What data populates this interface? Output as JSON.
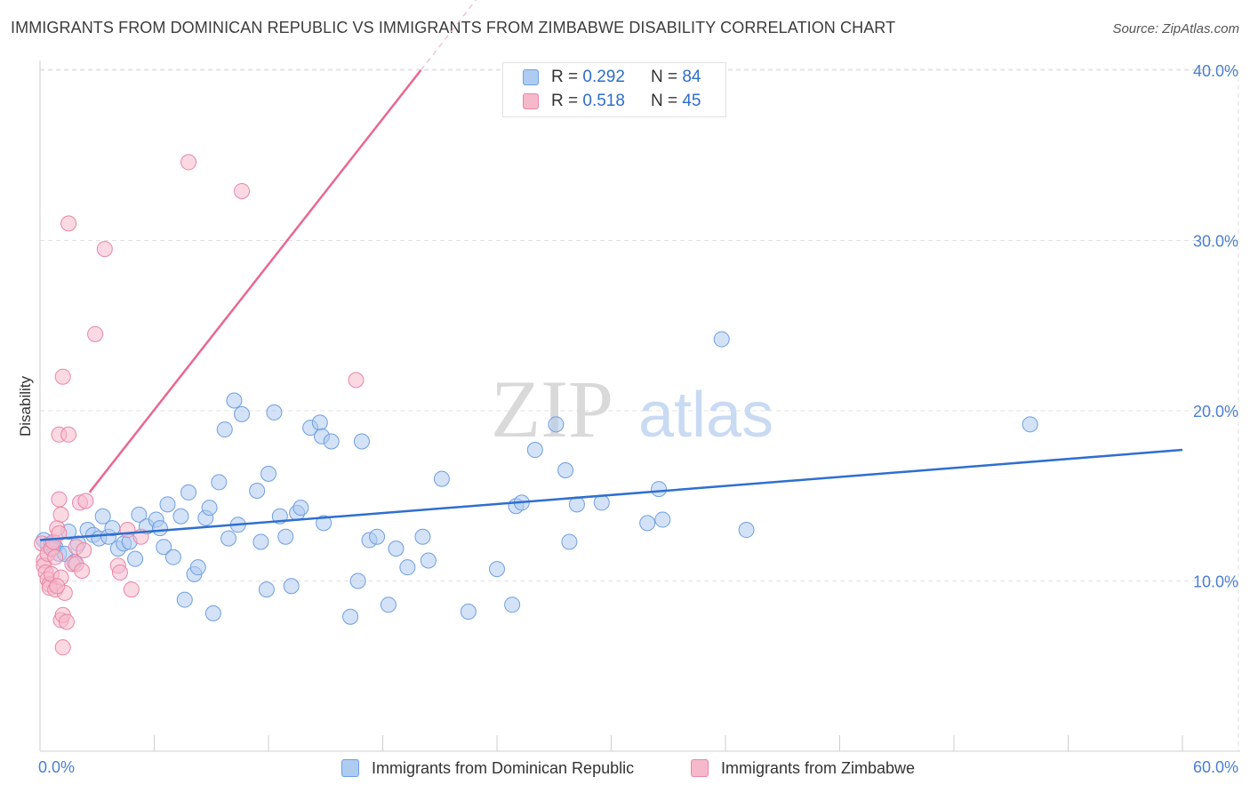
{
  "title": "IMMIGRANTS FROM DOMINICAN REPUBLIC VS IMMIGRANTS FROM ZIMBABWE DISABILITY CORRELATION CHART",
  "source": "Source: ZipAtlas.com",
  "watermark": {
    "part1": "ZIP",
    "part2": "atlas"
  },
  "legend": {
    "rows": [
      {
        "r_label": "R =",
        "r_value": "0.292",
        "n_label": "N =",
        "n_value": "84"
      },
      {
        "r_label": "R =",
        "r_value": "0.518",
        "n_label": "N =",
        "n_value": "45"
      }
    ]
  },
  "colors": {
    "blue_fill": "#aecbf1",
    "blue_stroke": "#6f9fe0",
    "blue_line": "#2f6fcf",
    "pink_fill": "#f6b9cc",
    "pink_stroke": "#ea86a6",
    "pink_line": "#e8688f",
    "grid": "#e3e3e3",
    "tick_text": "#4a7fd0"
  },
  "chart_data": {
    "type": "scatter",
    "title": "IMMIGRANTS FROM DOMINICAN REPUBLIC VS IMMIGRANTS FROM ZIMBABWE DISABILITY CORRELATION CHART",
    "xlabel": "",
    "ylabel": "Disability",
    "xlim": [
      0,
      60
    ],
    "ylim": [
      0,
      42
    ],
    "x_tick_labels": [
      "0.0%",
      "60.0%"
    ],
    "y_ticks": [
      10,
      20,
      30,
      40
    ],
    "y_tick_labels": [
      "10.0%",
      "20.0%",
      "30.0%",
      "40.0%"
    ],
    "grid": true,
    "legend_position": "bottom",
    "series": [
      {
        "name": "Immigrants from Dominican Republic",
        "color": "#aecbf1",
        "trend": {
          "x": [
            0,
            60
          ],
          "y": [
            12.4,
            17.7
          ]
        },
        "points": [
          [
            0.2,
            12.4
          ],
          [
            0.4,
            12.1
          ],
          [
            0.6,
            12.2
          ],
          [
            0.8,
            12.0
          ],
          [
            1.0,
            11.6
          ],
          [
            1.3,
            11.6
          ],
          [
            1.5,
            12.9
          ],
          [
            1.8,
            11.1
          ],
          [
            2.0,
            12.2
          ],
          [
            2.5,
            13.0
          ],
          [
            2.8,
            12.7
          ],
          [
            3.1,
            12.5
          ],
          [
            3.3,
            13.8
          ],
          [
            3.6,
            12.6
          ],
          [
            3.8,
            13.1
          ],
          [
            4.1,
            11.9
          ],
          [
            4.4,
            12.2
          ],
          [
            4.7,
            12.3
          ],
          [
            5.0,
            11.3
          ],
          [
            5.2,
            13.9
          ],
          [
            5.6,
            13.2
          ],
          [
            6.1,
            13.6
          ],
          [
            6.3,
            13.1
          ],
          [
            6.5,
            12.0
          ],
          [
            6.7,
            14.5
          ],
          [
            7.0,
            11.4
          ],
          [
            7.4,
            13.8
          ],
          [
            7.6,
            8.9
          ],
          [
            7.8,
            15.2
          ],
          [
            8.1,
            10.4
          ],
          [
            8.3,
            10.8
          ],
          [
            8.7,
            13.7
          ],
          [
            8.9,
            14.3
          ],
          [
            9.1,
            8.1
          ],
          [
            9.4,
            15.8
          ],
          [
            9.7,
            18.9
          ],
          [
            9.9,
            12.5
          ],
          [
            10.2,
            20.6
          ],
          [
            10.4,
            13.3
          ],
          [
            10.6,
            19.8
          ],
          [
            11.4,
            15.3
          ],
          [
            11.6,
            12.3
          ],
          [
            11.9,
            9.5
          ],
          [
            12.0,
            16.3
          ],
          [
            12.3,
            19.9
          ],
          [
            12.6,
            13.8
          ],
          [
            12.9,
            12.6
          ],
          [
            13.2,
            9.7
          ],
          [
            13.5,
            14.0
          ],
          [
            13.7,
            14.3
          ],
          [
            14.2,
            19.0
          ],
          [
            14.7,
            19.3
          ],
          [
            14.8,
            18.5
          ],
          [
            14.9,
            13.4
          ],
          [
            15.3,
            18.2
          ],
          [
            16.3,
            7.9
          ],
          [
            16.7,
            10.0
          ],
          [
            16.9,
            18.2
          ],
          [
            17.3,
            12.4
          ],
          [
            17.7,
            12.6
          ],
          [
            18.3,
            8.6
          ],
          [
            18.7,
            11.9
          ],
          [
            19.3,
            10.8
          ],
          [
            20.1,
            12.6
          ],
          [
            20.4,
            11.2
          ],
          [
            21.1,
            16.0
          ],
          [
            22.5,
            8.2
          ],
          [
            24.0,
            10.7
          ],
          [
            24.8,
            8.6
          ],
          [
            25.0,
            14.4
          ],
          [
            25.3,
            14.6
          ],
          [
            26.0,
            17.7
          ],
          [
            27.1,
            19.2
          ],
          [
            27.6,
            16.5
          ],
          [
            27.8,
            12.3
          ],
          [
            28.2,
            14.5
          ],
          [
            29.5,
            14.6
          ],
          [
            31.9,
            13.4
          ],
          [
            32.5,
            15.4
          ],
          [
            32.7,
            13.6
          ],
          [
            35.8,
            24.2
          ],
          [
            37.1,
            13.0
          ],
          [
            52.0,
            19.2
          ],
          [
            0.7,
            12.0
          ]
        ]
      },
      {
        "name": "Immigrants from Zimbabwe",
        "color": "#f6b9cc",
        "trend": {
          "x": [
            0,
            20
          ],
          "y": [
            11.5,
            40.0
          ]
        },
        "points": [
          [
            0.1,
            12.2
          ],
          [
            0.2,
            11.2
          ],
          [
            0.2,
            10.9
          ],
          [
            0.3,
            10.5
          ],
          [
            0.4,
            11.6
          ],
          [
            0.4,
            10.1
          ],
          [
            0.5,
            9.8
          ],
          [
            0.5,
            9.6
          ],
          [
            0.6,
            10.4
          ],
          [
            0.6,
            11.9
          ],
          [
            0.7,
            12.3
          ],
          [
            0.8,
            9.5
          ],
          [
            0.8,
            11.4
          ],
          [
            0.9,
            13.1
          ],
          [
            1.0,
            12.8
          ],
          [
            1.0,
            14.8
          ],
          [
            1.0,
            18.6
          ],
          [
            1.1,
            10.2
          ],
          [
            1.1,
            13.9
          ],
          [
            1.1,
            7.7
          ],
          [
            1.2,
            8.0
          ],
          [
            1.2,
            6.1
          ],
          [
            1.2,
            22.0
          ],
          [
            1.3,
            9.3
          ],
          [
            1.4,
            7.6
          ],
          [
            1.5,
            18.6
          ],
          [
            1.5,
            31.0
          ],
          [
            1.7,
            11.0
          ],
          [
            1.9,
            11.0
          ],
          [
            1.9,
            12.0
          ],
          [
            2.1,
            14.6
          ],
          [
            2.2,
            10.6
          ],
          [
            2.3,
            11.8
          ],
          [
            2.4,
            14.7
          ],
          [
            2.9,
            24.5
          ],
          [
            3.4,
            29.5
          ],
          [
            4.1,
            10.9
          ],
          [
            4.2,
            10.5
          ],
          [
            4.6,
            13.0
          ],
          [
            4.8,
            9.5
          ],
          [
            5.3,
            12.6
          ],
          [
            7.8,
            34.6
          ],
          [
            10.6,
            32.9
          ],
          [
            16.6,
            21.8
          ],
          [
            0.9,
            9.7
          ]
        ]
      }
    ]
  },
  "bottom_legend": {
    "items": [
      {
        "label": "Immigrants from Dominican Republic"
      },
      {
        "label": "Immigrants from Zimbabwe"
      }
    ]
  }
}
